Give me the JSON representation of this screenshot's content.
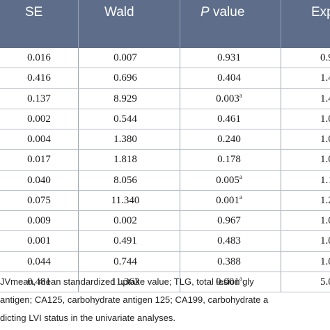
{
  "table": {
    "headers": {
      "se": "SE",
      "wald": "Wald",
      "p_italic": "P",
      "p_rest": " value",
      "exp": "Exp"
    },
    "rows": [
      {
        "se": "0.016",
        "wald": "0.007",
        "p": "0.931",
        "p_sup": "",
        "exp": "0.9"
      },
      {
        "se": "0.416",
        "wald": "0.696",
        "p": "0.404",
        "p_sup": "",
        "exp": "1.4"
      },
      {
        "se": "0.137",
        "wald": "8.929",
        "p": "0.003",
        "p_sup": "a",
        "exp": "1.4"
      },
      {
        "se": "0.002",
        "wald": "0.544",
        "p": "0.461",
        "p_sup": "",
        "exp": "1.0"
      },
      {
        "se": "0.004",
        "wald": "1.380",
        "p": "0.240",
        "p_sup": "",
        "exp": "1.0"
      },
      {
        "se": "0.017",
        "wald": "1.818",
        "p": "0.178",
        "p_sup": "",
        "exp": "1.0"
      },
      {
        "se": "0.040",
        "wald": "8.056",
        "p": "0.005",
        "p_sup": "a",
        "exp": "1.1"
      },
      {
        "se": "0.075",
        "wald": "11.340",
        "p": "0.001",
        "p_sup": "a",
        "exp": "1.2"
      },
      {
        "se": "0.009",
        "wald": "0.002",
        "p": "0.967",
        "p_sup": "",
        "exp": "1.0"
      },
      {
        "se": "0.001",
        "wald": "0.491",
        "p": "0.483",
        "p_sup": "",
        "exp": "1.0"
      },
      {
        "se": "0.044",
        "wald": "0.744",
        "p": "0.388",
        "p_sup": "",
        "exp": "1.0"
      },
      {
        "se": "0.481",
        "wald": "11.363",
        "p": "0.001",
        "p_sup": "a",
        "exp": "5.0"
      }
    ]
  },
  "footnote": {
    "line1": "JVmean, mean standardized uptake value; TLG, total lesion gly",
    "line2": "antigen; CA125, carbohydrate antigen 125; CA199, carbohydrate a",
    "line3": "dicting LVI status in the univariate analyses."
  },
  "colors": {
    "header_bg": "#5e6e8a",
    "header_text": "#ffffff"
  }
}
